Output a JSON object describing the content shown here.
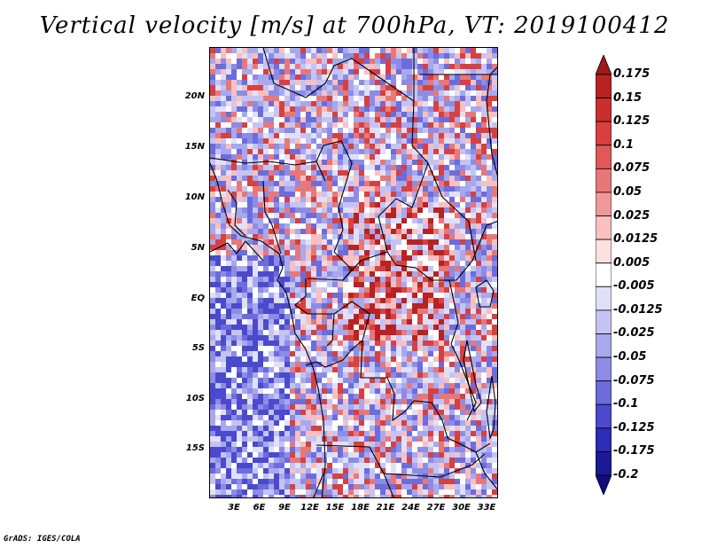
{
  "title": "Vertical velocity [m/s] at 700hPa, VT: 2019100412",
  "footer": "GrADS: IGES/COLA",
  "map": {
    "lat_labels": [
      "20N",
      "15N",
      "10N",
      "5N",
      "EQ",
      "5S",
      "10S",
      "15S"
    ],
    "lon_labels": [
      "3E",
      "6E",
      "9E",
      "12E",
      "15E",
      "18E",
      "21E",
      "24E",
      "27E",
      "30E",
      "33E"
    ]
  },
  "colorbar": {
    "labels": [
      "0.175",
      "0.15",
      "0.125",
      "0.1",
      "0.075",
      "0.05",
      "0.025",
      "0.0125",
      "0.005",
      "-0.005",
      "-0.0125",
      "-0.025",
      "-0.05",
      "-0.075",
      "-0.1",
      "-0.125",
      "-0.175",
      "-0.2"
    ],
    "colors": [
      "#a01818",
      "#b82222",
      "#c83030",
      "#d84040",
      "#e05858",
      "#e87878",
      "#f09898",
      "#f8c0c0",
      "#fde0e0",
      "#ffffff",
      "#e0e0fa",
      "#c4c4f4",
      "#a8a8ee",
      "#8c8ce6",
      "#6c6cdc",
      "#4a4acc",
      "#2c2cb4",
      "#1a1a96",
      "#140a80"
    ]
  }
}
